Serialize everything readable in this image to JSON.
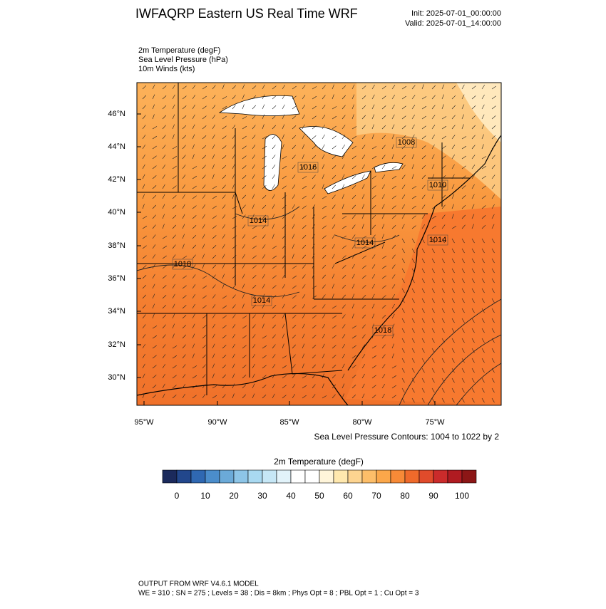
{
  "header": {
    "title": "IWFAQRP Eastern US Real Time WRF",
    "init": "Init: 2025-07-01_00:00:00",
    "valid": "Valid: 2025-07-01_14:00:00"
  },
  "fields": [
    "2m Temperature   (degF)",
    "Sea Level Pressure   (hPa)",
    "10m Winds   (kts)"
  ],
  "map": {
    "lat_labels": [
      "46°N",
      "44°N",
      "42°N",
      "40°N",
      "38°N",
      "36°N",
      "34°N",
      "32°N",
      "30°N"
    ],
    "lon_labels": [
      "95°W",
      "90°W",
      "85°W",
      "80°W",
      "75°W"
    ],
    "contour_labels": [
      "1008",
      "1016",
      "1010",
      "1014",
      "1014",
      "1014",
      "1018",
      "1014",
      "1018"
    ],
    "contour_note": "Sea Level Pressure Contours: 1004 to 1022 by 2"
  },
  "colorbar": {
    "title": "2m Temperature  (degF)",
    "colors": [
      "#1b2a5c",
      "#22478c",
      "#2f68b2",
      "#4b8dcb",
      "#6baad8",
      "#8dc5e7",
      "#a9d9f1",
      "#c6e7f6",
      "#e2f3fa",
      "#ffffff",
      "#ffffff",
      "#fff5da",
      "#ffe8ae",
      "#fdd490",
      "#fdbe69",
      "#fba74a",
      "#f78a37",
      "#ef6a2b",
      "#e04b2b",
      "#cb2b2b",
      "#b01b21",
      "#8c1616"
    ],
    "labels": [
      "0",
      "10",
      "20",
      "30",
      "40",
      "50",
      "60",
      "70",
      "80",
      "90",
      "100"
    ]
  },
  "footer": {
    "line1": "OUTPUT FROM WRF V4.6.1 MODEL",
    "line2": "WE = 310 ; SN = 275 ; Levels = 38 ; Dis = 8km ; Phys Opt = 8 ; PBL Opt = 1 ; Cu Opt = 3"
  }
}
